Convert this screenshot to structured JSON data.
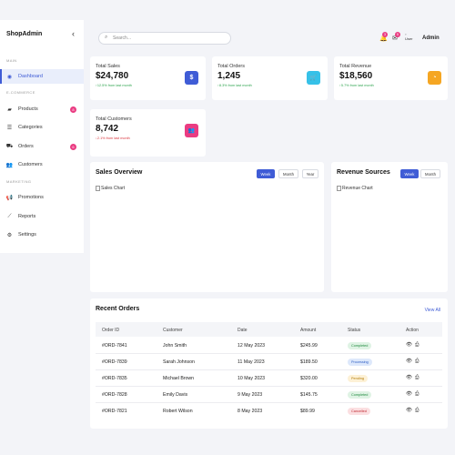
{
  "brand": "ShopAdmin",
  "sidebar": {
    "sections": [
      "MAIN",
      "E-COMMERCE",
      "MARKETING"
    ],
    "items": [
      {
        "label": "Dashboard",
        "icon": "dashboard-icon",
        "active": true
      },
      {
        "label": "Products",
        "icon": "bag-icon",
        "badge": "8"
      },
      {
        "label": "Categories",
        "icon": "list-icon"
      },
      {
        "label": "Orders",
        "icon": "truck-icon",
        "badge": "6"
      },
      {
        "label": "Customers",
        "icon": "users-icon"
      },
      {
        "label": "Promotions",
        "icon": "megaphone-icon"
      },
      {
        "label": "Reports",
        "icon": "chart-line-icon"
      },
      {
        "label": "Settings",
        "icon": "gear-icon"
      }
    ]
  },
  "topbar": {
    "search_placeholder": "Search...",
    "notif_count": "3",
    "mail_count": "5",
    "avatar_alt": "User",
    "username": "Admin"
  },
  "stats": [
    {
      "label": "Total Sales",
      "value": "$24,780",
      "change": "↑12.5% from last month",
      "trend": "up",
      "icon": "$",
      "icon_name": "dollar-icon",
      "color": "#3f5cd6"
    },
    {
      "label": "Total Orders",
      "value": "1,245",
      "change": "↑8.3% from last month",
      "trend": "up",
      "icon": "🛒",
      "icon_name": "cart-icon",
      "color": "#36c1e8"
    },
    {
      "label": "Total Revenue",
      "value": "$18,560",
      "change": "↑5.7% from last month",
      "trend": "up",
      "icon": "◔",
      "icon_name": "pie-icon",
      "color": "#f5a623"
    },
    {
      "label": "Total Customers",
      "value": "8,742",
      "change": "↓2.1% from last month",
      "trend": "down",
      "icon": "👥",
      "icon_name": "users-icon",
      "color": "#ea3c82"
    }
  ],
  "sales_overview": {
    "title": "Sales Overview",
    "ranges": [
      "Week",
      "Month",
      "Year"
    ],
    "active_range": "Week",
    "chart_alt": "Sales Chart"
  },
  "revenue_sources": {
    "title": "Revenue Sources",
    "ranges": [
      "Week",
      "Month"
    ],
    "active_range": "Week",
    "chart_alt": "Revenue Chart"
  },
  "orders": {
    "title": "Recent Orders",
    "view_all": "View All",
    "columns": [
      "Order ID",
      "Customer",
      "Date",
      "Amount",
      "Status",
      "Action"
    ],
    "rows": [
      {
        "id": "#ORD-7841",
        "customer": "John Smith",
        "date": "12 May 2023",
        "amount": "$245.99",
        "status": "Completed",
        "status_key": "completed"
      },
      {
        "id": "#ORD-7839",
        "customer": "Sarah Johnson",
        "date": "11 May 2023",
        "amount": "$189.50",
        "status": "Processing",
        "status_key": "processing"
      },
      {
        "id": "#ORD-7835",
        "customer": "Michael Brown",
        "date": "10 May 2023",
        "amount": "$320.00",
        "status": "Pending",
        "status_key": "pending"
      },
      {
        "id": "#ORD-7828",
        "customer": "Emily Davis",
        "date": "9 May 2023",
        "amount": "$145.75",
        "status": "Completed",
        "status_key": "completed"
      },
      {
        "id": "#ORD-7821",
        "customer": "Robert Wilson",
        "date": "8 May 2023",
        "amount": "$89.99",
        "status": "Cancelled",
        "status_key": "cancelled"
      }
    ]
  }
}
